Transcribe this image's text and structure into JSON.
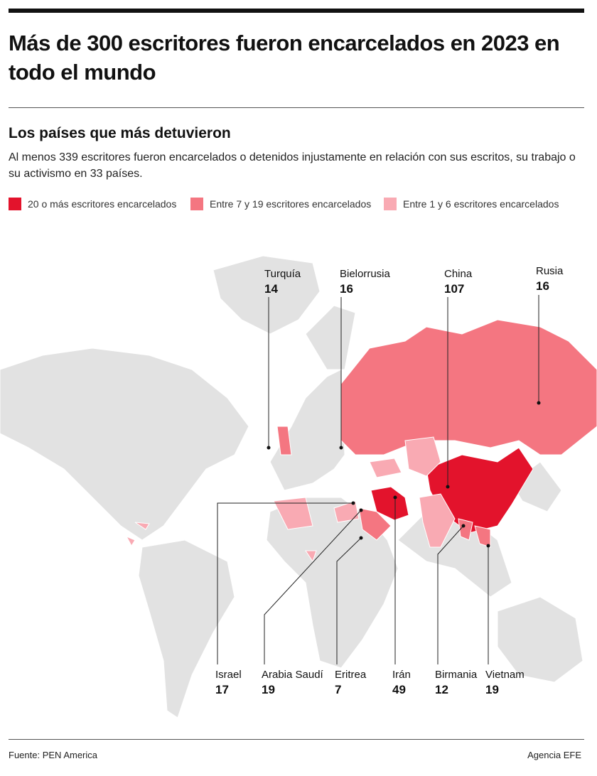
{
  "header": {
    "title": "Más de 300 escritores fueron encarcelados en 2023 en todo el mundo",
    "subtitle": "Los países que más detuvieron",
    "description": "Al menos 339 escritores fueron encarcelados o detenidos injustamente en relación con sus escritos, su trabajo o su activismo en 33 países."
  },
  "legend": [
    {
      "label": "20 o más escritores encarcelados",
      "color": "#e3132c"
    },
    {
      "label": "Entre 7 y 19 escritores encarcelados",
      "color": "#f47681"
    },
    {
      "label": "Entre 1 y 6 escritores encarcelados",
      "color": "#f9aab3"
    }
  ],
  "callouts": [
    {
      "country": "Turquía",
      "value": 14
    },
    {
      "country": "Bielorrusia",
      "value": 16
    },
    {
      "country": "China",
      "value": 107
    },
    {
      "country": "Rusia",
      "value": 16
    },
    {
      "country": "Israel",
      "value": 17
    },
    {
      "country": "Arabia Saudí",
      "value": 19
    },
    {
      "country": "Eritrea",
      "value": 7
    },
    {
      "country": "Irán",
      "value": 49
    },
    {
      "country": "Birmania",
      "value": 12
    },
    {
      "country": "Vietnam",
      "value": 19
    }
  ],
  "footer": {
    "source": "Fuente: PEN America",
    "agency": "Agencia EFE"
  }
}
